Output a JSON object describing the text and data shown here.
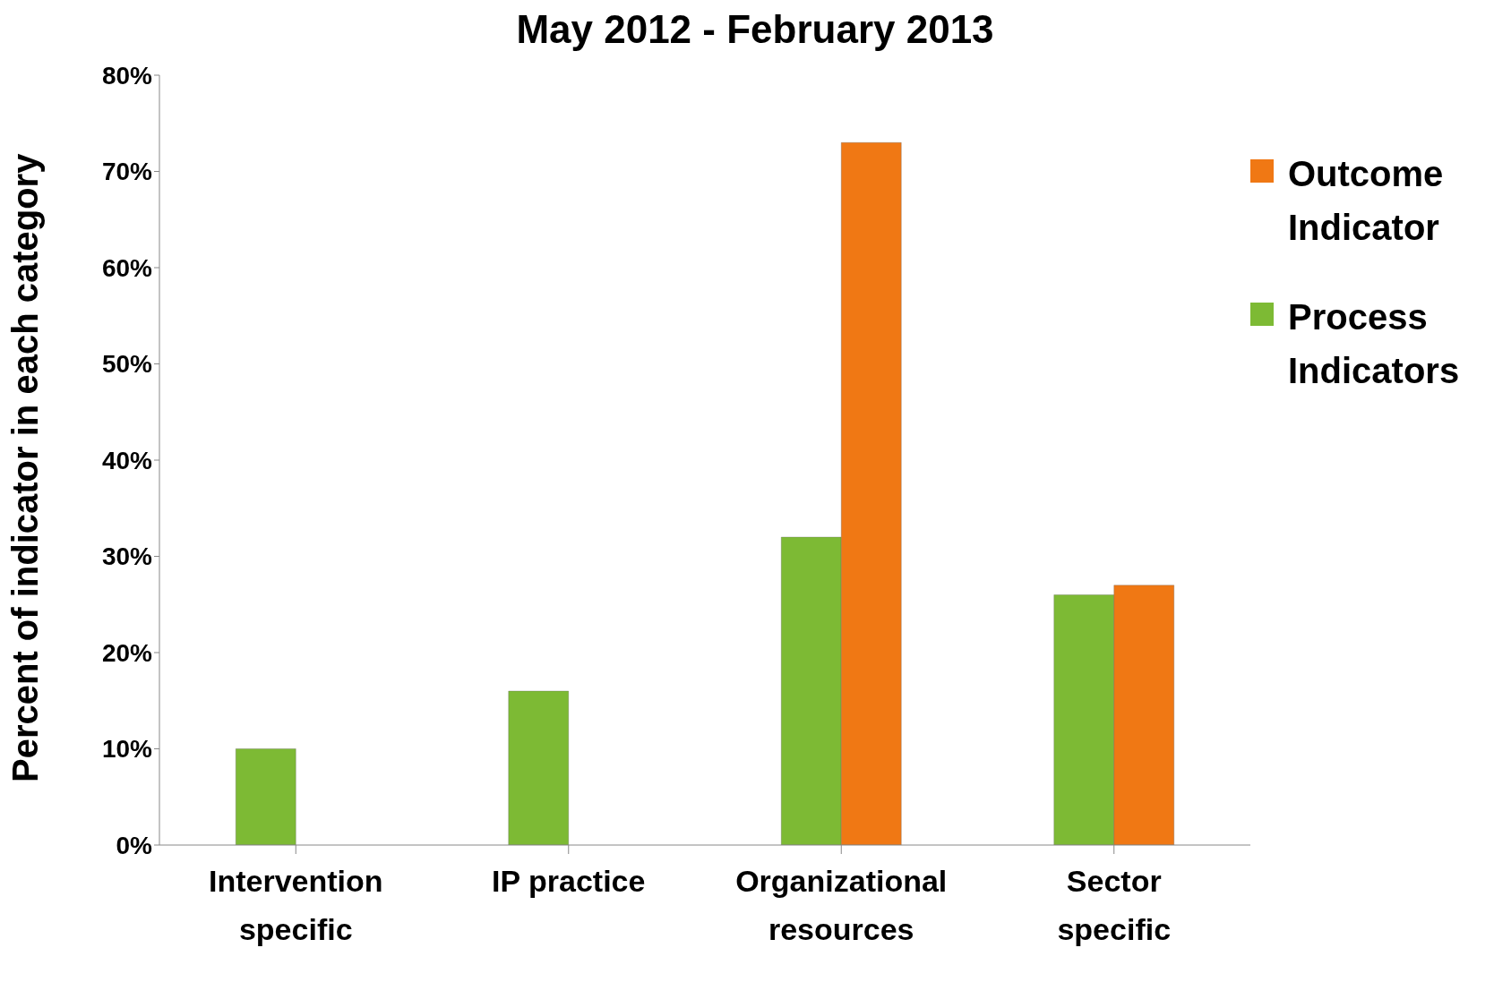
{
  "chart_data": {
    "type": "bar",
    "title": "May 2012 - February 2013",
    "ylabel": "Percent of indicator in each category",
    "categories": [
      "Intervention specific",
      "IP practice",
      "Organizational resources",
      "Sector specific"
    ],
    "series": [
      {
        "name": "Process Indicators",
        "color": "#7dba34",
        "values": [
          10,
          16,
          32,
          26
        ]
      },
      {
        "name": "Outcome Indicator",
        "color": "#f07814",
        "values": [
          null,
          null,
          73,
          27
        ]
      }
    ],
    "ylim": [
      0,
      80
    ],
    "yticks": [
      {
        "value": 0,
        "label": "0%"
      },
      {
        "value": 10,
        "label": "10%"
      },
      {
        "value": 20,
        "label": "20%"
      },
      {
        "value": 30,
        "label": "30%"
      },
      {
        "value": 40,
        "label": "40%"
      },
      {
        "value": 50,
        "label": "50%"
      },
      {
        "value": 60,
        "label": "60%"
      },
      {
        "value": 70,
        "label": "70%"
      },
      {
        "value": 80,
        "label": "80%"
      }
    ],
    "grid": false,
    "legend": "top right"
  }
}
